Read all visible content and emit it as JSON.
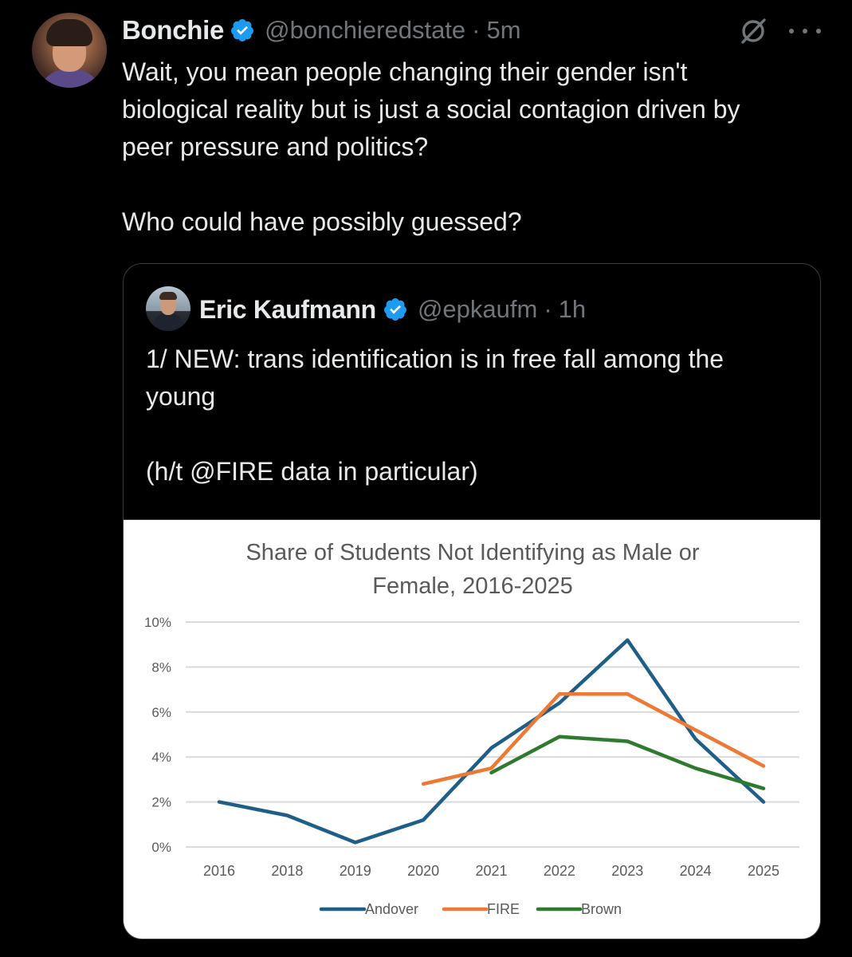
{
  "tweet": {
    "author_name": "Bonchie",
    "handle": "@bonchieredstate",
    "separator": "·",
    "time": "5m",
    "avatar_icon": "profile-photo",
    "text_lines": [
      "Wait, you mean people changing their gender isn't",
      "biological reality but is just a social contagion driven by",
      "peer pressure and politics?"
    ],
    "text_line_2": "Who could have possibly guessed?"
  },
  "quote": {
    "author_name": "Eric Kaufmann",
    "handle": "@epkaufm",
    "separator": "·",
    "time": "1h",
    "text_lines": [
      "1/ NEW: trans identification is in free fall among the",
      "young"
    ],
    "text_line_2": "(h/t @FIRE data in particular)"
  },
  "colors": {
    "verified": "#1d9bf0",
    "muted": "#71767b",
    "andover": "#1f5f87",
    "fire": "#ec7a35",
    "brown": "#2e7a2e"
  },
  "chart_data": {
    "type": "line",
    "title_lines": [
      "Share of Students Not Identifying as Male or",
      "Female, 2016-2025"
    ],
    "categories": [
      "2016",
      "2018",
      "2019",
      "2020",
      "2021",
      "2022",
      "2023",
      "2024",
      "2025"
    ],
    "y_ticks": [
      "0%",
      "2%",
      "4%",
      "6%",
      "8%",
      "10%"
    ],
    "ylim": [
      0,
      10
    ],
    "grid": true,
    "legend_position": "bottom",
    "series": [
      {
        "name": "Andover",
        "color": "#1f5f87",
        "values": [
          2.0,
          1.4,
          0.2,
          1.2,
          4.4,
          6.4,
          9.2,
          4.8,
          2.0
        ]
      },
      {
        "name": "FIRE",
        "color": "#ec7a35",
        "values": [
          null,
          null,
          null,
          2.8,
          3.5,
          6.8,
          6.8,
          5.2,
          3.6
        ]
      },
      {
        "name": "Brown",
        "color": "#2e7a2e",
        "values": [
          null,
          null,
          null,
          null,
          3.3,
          4.9,
          4.7,
          3.5,
          2.6
        ]
      }
    ]
  }
}
